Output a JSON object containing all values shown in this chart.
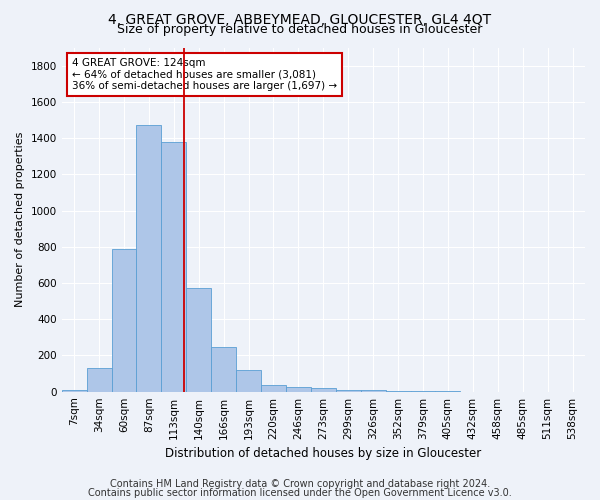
{
  "title": "4, GREAT GROVE, ABBEYMEAD, GLOUCESTER, GL4 4QT",
  "subtitle": "Size of property relative to detached houses in Gloucester",
  "xlabel": "Distribution of detached houses by size in Gloucester",
  "ylabel": "Number of detached properties",
  "categories": [
    "7sqm",
    "34sqm",
    "60sqm",
    "87sqm",
    "113sqm",
    "140sqm",
    "166sqm",
    "193sqm",
    "220sqm",
    "246sqm",
    "273sqm",
    "299sqm",
    "326sqm",
    "352sqm",
    "379sqm",
    "405sqm",
    "432sqm",
    "458sqm",
    "485sqm",
    "511sqm",
    "538sqm"
  ],
  "values": [
    10,
    130,
    790,
    1470,
    1380,
    575,
    248,
    120,
    38,
    25,
    18,
    10,
    7,
    2,
    1,
    5,
    0,
    0,
    0,
    0,
    0
  ],
  "bar_color": "#aec6e8",
  "bar_edge_color": "#5a9fd4",
  "annotation_text": "4 GREAT GROVE: 124sqm\n← 64% of detached houses are smaller (3,081)\n36% of semi-detached houses are larger (1,697) →",
  "annotation_box_color": "#ffffff",
  "annotation_box_edge_color": "#cc0000",
  "red_line_color": "#cc0000",
  "red_line_x": 4.4,
  "ylim": [
    0,
    1900
  ],
  "yticks": [
    0,
    200,
    400,
    600,
    800,
    1000,
    1200,
    1400,
    1600,
    1800
  ],
  "footnote1": "Contains HM Land Registry data © Crown copyright and database right 2024.",
  "footnote2": "Contains public sector information licensed under the Open Government Licence v3.0.",
  "background_color": "#eef2f9",
  "grid_color": "#ffffff",
  "title_fontsize": 10,
  "subtitle_fontsize": 9,
  "xlabel_fontsize": 8.5,
  "ylabel_fontsize": 8,
  "tick_fontsize": 7.5,
  "annotation_fontsize": 7.5,
  "footnote_fontsize": 7
}
